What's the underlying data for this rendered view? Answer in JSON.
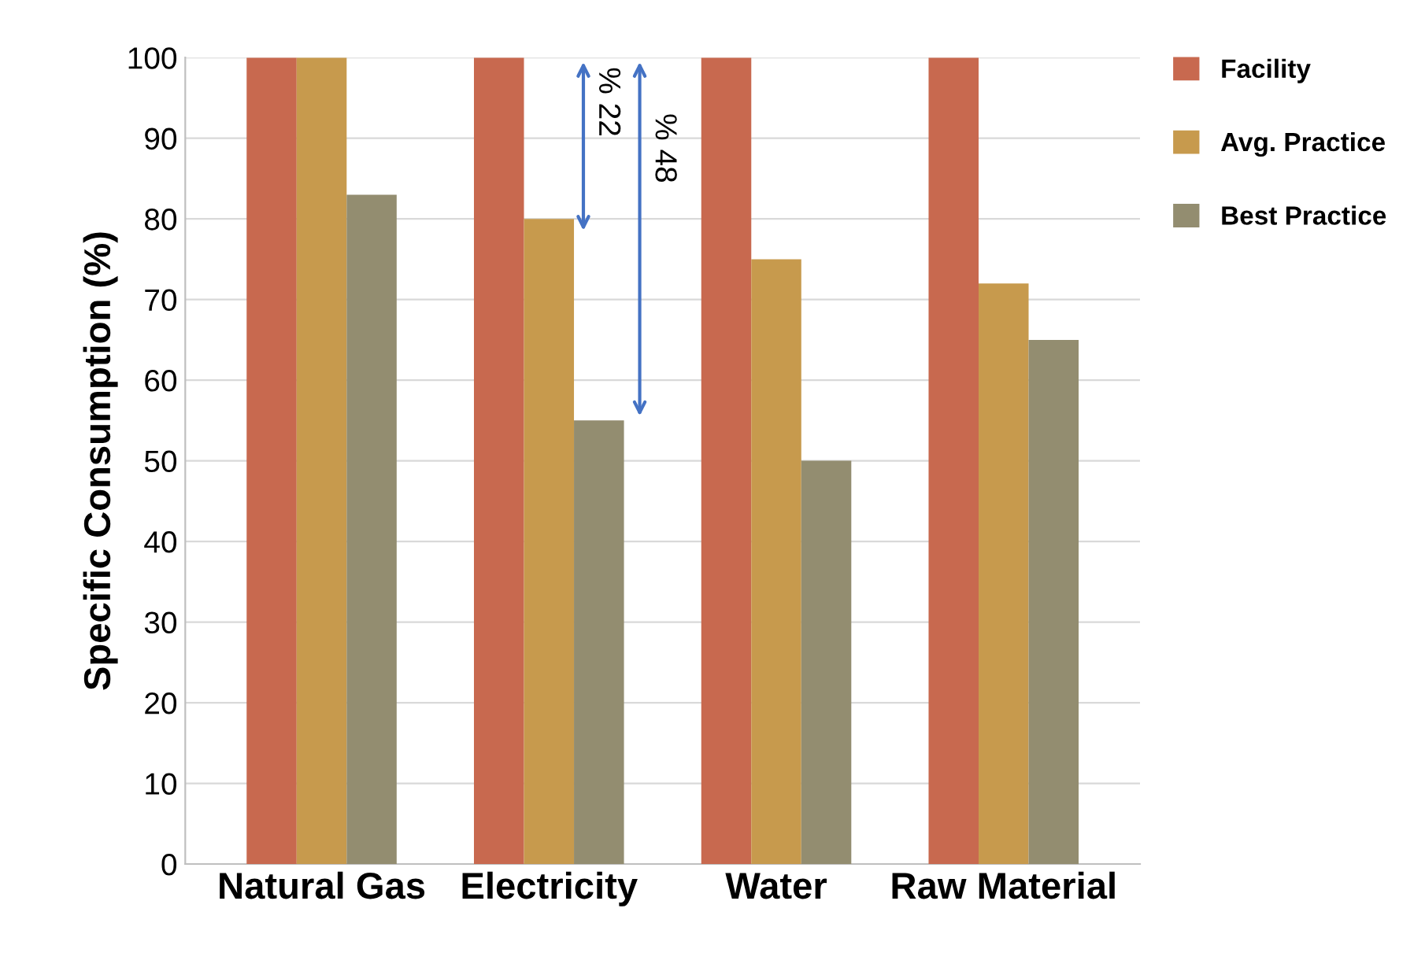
{
  "chart_data": {
    "type": "bar",
    "ylabel": "Specific Consumption (%)",
    "categories": [
      "Natural Gas",
      "Electricity",
      "Water",
      "Raw Material"
    ],
    "series": [
      {
        "name": "Facility",
        "color": "#c8694f",
        "values": [
          100,
          100,
          100,
          100
        ]
      },
      {
        "name": "Avg. Practice",
        "color": "#c79a4d",
        "values": [
          100,
          80,
          75,
          72
        ]
      },
      {
        "name": "Best Practice",
        "color": "#938d70",
        "values": [
          83,
          55,
          50,
          65
        ]
      }
    ],
    "ylim": [
      0,
      100
    ],
    "yticks": [
      0,
      10,
      20,
      30,
      40,
      50,
      60,
      70,
      80,
      90,
      100
    ],
    "grid": "y",
    "legend": "top right",
    "annotations": [
      "% 22",
      "% 48"
    ]
  }
}
